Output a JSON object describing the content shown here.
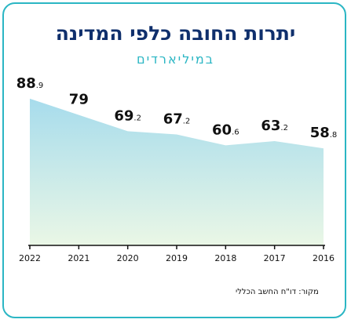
{
  "title": "יתרות החובה כלפי המדינה",
  "subtitle": "במיליארדים",
  "source": "מקור: דו\"ח החשב הכללי",
  "colors": {
    "title": "#0f2f6c",
    "accent": "#2bb6c4",
    "area_top": "#a7dcec",
    "area_bottom": "#eaf7e6",
    "axis": "#111111"
  },
  "chart_data": {
    "type": "area",
    "x": [
      "2022",
      "2021",
      "2020",
      "2019",
      "2018",
      "2017",
      "2016"
    ],
    "values": [
      88.9,
      79,
      69.2,
      67.2,
      60.6,
      63.2,
      58.8
    ],
    "labels": [
      {
        "int": "88",
        "dec": ".9"
      },
      {
        "int": "79",
        "dec": ""
      },
      {
        "int": "69",
        "dec": ".2"
      },
      {
        "int": "67",
        "dec": ".2"
      },
      {
        "int": "60",
        "dec": ".6"
      },
      {
        "int": "63",
        "dec": ".2"
      },
      {
        "int": "58",
        "dec": ".8"
      }
    ],
    "ylim": [
      0,
      95
    ],
    "grid": false,
    "title": "יתרות החובה כלפי המדינה",
    "unit": "במיליארדים"
  }
}
